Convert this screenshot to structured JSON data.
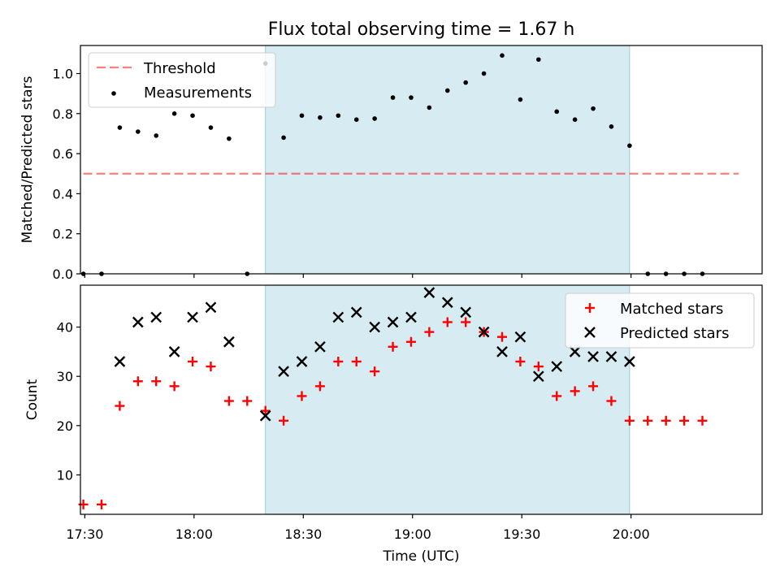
{
  "chart_data": {
    "title": "Flux total observing time = 1.67 h",
    "xlabel": "Time (UTC)",
    "x_unit": "minutes since 00:00 UTC",
    "x_ticks": [
      {
        "v": 1050,
        "label": "17:30"
      },
      {
        "v": 1080,
        "label": "18:00"
      },
      {
        "v": 1110,
        "label": "18:30"
      },
      {
        "v": 1140,
        "label": "19:00"
      },
      {
        "v": 1170,
        "label": "19:30"
      },
      {
        "v": 1200,
        "label": "20:00"
      }
    ],
    "xlim": [
      1048.8,
      1236
    ],
    "shaded_span": [
      1099.6,
      1199.6
    ],
    "shade_color": "#add8e6",
    "top": {
      "type": "scatter",
      "ylabel": "Matched/Predicted stars",
      "ylim": [
        0,
        1.14
      ],
      "yticks": [
        {
          "v": 0.0,
          "label": "0.0"
        },
        {
          "v": 0.2,
          "label": "0.2"
        },
        {
          "v": 0.4,
          "label": "0.4"
        },
        {
          "v": 0.6,
          "label": "0.6"
        },
        {
          "v": 0.8,
          "label": "0.8"
        },
        {
          "v": 1.0,
          "label": "1.0"
        }
      ],
      "threshold": {
        "name": "Threshold",
        "value": 0.5,
        "x_range": [
          1049.6,
          1229.6
        ],
        "color": "#ff0000"
      },
      "measurements": {
        "name": "Measurements",
        "color": "#000000",
        "x": [
          1049.6,
          1054.6,
          1059.6,
          1064.6,
          1069.6,
          1074.6,
          1079.6,
          1084.6,
          1089.6,
          1094.6,
          1099.6,
          1104.6,
          1109.6,
          1114.6,
          1119.6,
          1124.6,
          1129.6,
          1134.6,
          1139.6,
          1144.6,
          1149.6,
          1154.6,
          1159.6,
          1164.6,
          1169.6,
          1174.6,
          1179.6,
          1184.6,
          1189.6,
          1194.6,
          1199.6,
          1204.6,
          1209.6,
          1214.6,
          1219.6
        ],
        "y": [
          0.0,
          0.0,
          0.73,
          0.71,
          0.69,
          0.8,
          0.79,
          0.73,
          0.675,
          0.0,
          1.05,
          0.68,
          0.79,
          0.78,
          0.79,
          0.77,
          0.775,
          0.88,
          0.88,
          0.83,
          0.915,
          0.955,
          1.0,
          1.09,
          0.87,
          1.07,
          0.81,
          0.77,
          0.825,
          0.735,
          0.64,
          0.0,
          0.0,
          0.0,
          0.0
        ]
      },
      "legend": {
        "position": "upper-left"
      }
    },
    "bottom": {
      "type": "scatter",
      "ylabel": "Count",
      "ylim": [
        2,
        48.5
      ],
      "yticks": [
        {
          "v": 10,
          "label": "10"
        },
        {
          "v": 20,
          "label": "20"
        },
        {
          "v": 30,
          "label": "30"
        },
        {
          "v": 40,
          "label": "40"
        }
      ],
      "matched": {
        "name": "Matched stars",
        "marker": "+",
        "color": "#ff0000",
        "x": [
          1049.6,
          1054.6,
          1059.6,
          1064.6,
          1069.6,
          1074.6,
          1079.6,
          1084.6,
          1089.6,
          1094.6,
          1099.6,
          1104.6,
          1109.6,
          1114.6,
          1119.6,
          1124.6,
          1129.6,
          1134.6,
          1139.6,
          1144.6,
          1149.6,
          1154.6,
          1159.6,
          1164.6,
          1169.6,
          1174.6,
          1179.6,
          1184.6,
          1189.6,
          1194.6,
          1199.6,
          1204.6,
          1209.6,
          1214.6,
          1219.6
        ],
        "y": [
          4,
          4,
          24,
          29,
          29,
          28,
          33,
          32,
          25,
          25,
          23,
          21,
          26,
          28,
          33,
          33,
          31,
          36,
          37,
          39,
          41,
          41,
          39,
          38,
          33,
          32,
          26,
          27,
          28,
          25,
          21,
          21,
          21,
          21,
          21
        ]
      },
      "predicted": {
        "name": "Predicted stars",
        "marker": "x",
        "color": "#000000",
        "x": [
          1059.6,
          1064.6,
          1069.6,
          1074.6,
          1079.6,
          1084.6,
          1089.6,
          1099.6,
          1104.6,
          1109.6,
          1114.6,
          1119.6,
          1124.6,
          1129.6,
          1134.6,
          1139.6,
          1144.6,
          1149.6,
          1154.6,
          1159.6,
          1164.6,
          1169.6,
          1174.6,
          1179.6,
          1184.6,
          1189.6,
          1194.6,
          1199.6
        ],
        "y": [
          33,
          41,
          42,
          35,
          42,
          44,
          37,
          22,
          31,
          33,
          36,
          42,
          43,
          40,
          41,
          42,
          47,
          45,
          43,
          39,
          35,
          38,
          30,
          32,
          35,
          34,
          34,
          33
        ]
      },
      "legend": {
        "position": "upper-right"
      }
    }
  }
}
